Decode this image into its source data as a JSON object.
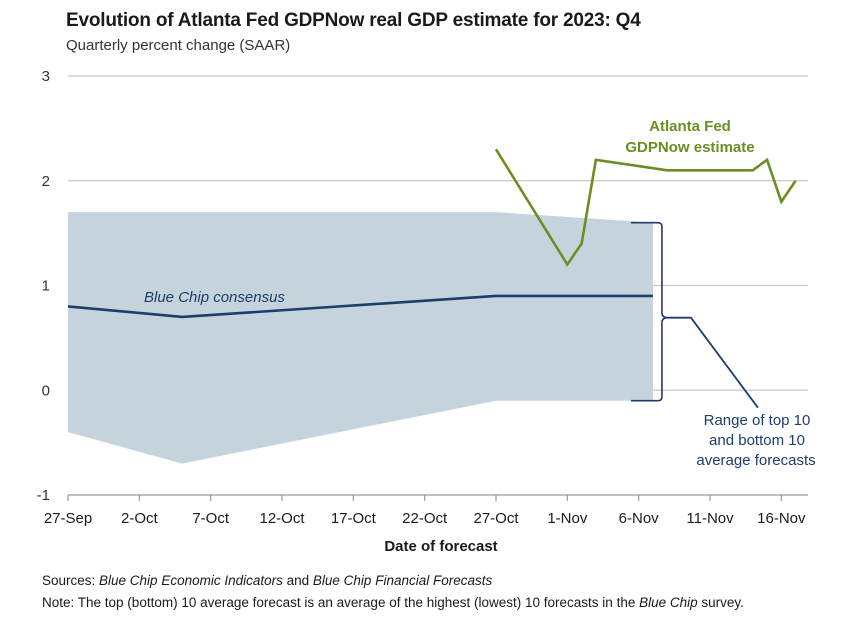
{
  "chart_data": {
    "type": "line",
    "title": "Evolution of Atlanta Fed GDPNow real GDP estimate for 2023: Q4",
    "subtitle": "Quarterly percent change (SAAR)",
    "xlabel": "Date of forecast",
    "ylabel": "",
    "ylim": [
      -1,
      3
    ],
    "yticks": [
      "3",
      "2",
      "1",
      "0",
      "-1"
    ],
    "xticks": [
      "27-Sep",
      "2-Oct",
      "7-Oct",
      "12-Oct",
      "17-Oct",
      "22-Oct",
      "27-Oct",
      "1-Nov",
      "6-Nov",
      "11-Nov",
      "16-Nov"
    ],
    "grid": true,
    "series": [
      {
        "name": "Blue Chip consensus",
        "color": "#1f3d6b",
        "x": [
          "2023-09-27",
          "2023-10-05",
          "2023-10-27",
          "2023-11-07"
        ],
        "values": [
          0.8,
          0.7,
          0.9,
          0.9
        ]
      },
      {
        "name": "Atlanta Fed GDPNow estimate",
        "color": "#6b8e23",
        "x": [
          "2023-10-27",
          "2023-11-01",
          "2023-11-02",
          "2023-11-03",
          "2023-11-08",
          "2023-11-14",
          "2023-11-15",
          "2023-11-16",
          "2023-11-17"
        ],
        "values": [
          2.3,
          1.2,
          1.4,
          2.2,
          2.1,
          2.1,
          2.2,
          1.8,
          2.0
        ]
      }
    ],
    "band": {
      "name": "Range of top 10 and bottom 10 average forecasts",
      "color": "#c5d3dd",
      "x": [
        "2023-09-27",
        "2023-10-05",
        "2023-10-27",
        "2023-11-07"
      ],
      "upper": [
        1.7,
        1.7,
        1.7,
        1.6
      ],
      "lower": [
        -0.4,
        -0.7,
        -0.1,
        -0.1
      ]
    },
    "annotations": {
      "blue_chip": "Blue Chip consensus",
      "gdpnow_line1": "Atlanta Fed",
      "gdpnow_line2": "GDPNow estimate",
      "range_line1": "Range of top 10",
      "range_line2": "and bottom 10",
      "range_line3": "average forecasts"
    }
  },
  "footer": {
    "sources_label": "Sources: ",
    "sources_italic1": "Blue Chip Economic Indicators",
    "sources_mid": " and ",
    "sources_italic2": "Blue Chip Financial Forecasts",
    "note_label": "Note: ",
    "note_text": "The top (bottom) 10 average forecast is an average of the highest (lowest) 10 forecasts in the ",
    "note_italic": "Blue Chip",
    "note_end": " survey."
  }
}
